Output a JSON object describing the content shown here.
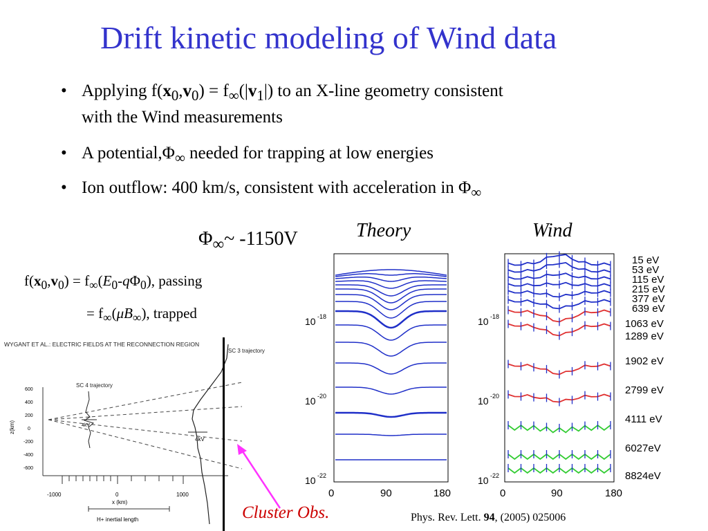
{
  "title": "Drift kinetic modeling of Wind data",
  "bullets": {
    "b1_pre": "Applying   f(",
    "b1_x": "x",
    "b1_sub0a": "0",
    "b1_comma": ",",
    "b1_v": "v",
    "b1_sub0b": "0",
    "b1_mid": ") = f",
    "b1_inf": "∞",
    "b1_open": "(|",
    "b1_v1": "v",
    "b1_sub1": "1",
    "b1_post": "|) to an X-line geometry consistent",
    "b1_line2": "with the Wind measurements",
    "b2_pre": "A potential,Φ",
    "b2_inf": "∞",
    "b2_post": " needed for trapping at low energies",
    "b3_pre": "Ion outflow: 400 km/s, consistent with acceleration in Φ",
    "b3_inf": "∞",
    "marker": "•"
  },
  "phi_label": {
    "phi": "Φ",
    "inf": "∞",
    "value": "~ -1150V"
  },
  "equations": {
    "passing_pre": "f(",
    "passing_x": "x",
    "passing_s0": "0",
    "passing_c": ",",
    "passing_v": "v",
    "passing_s0b": "0",
    "passing_mid": ") = f",
    "passing_inf": "∞",
    "passing_open": "(",
    "passing_E": "E",
    "passing_s0c": "0",
    "passing_minus": "-",
    "passing_q": "q",
    "passing_phi": "Φ",
    "passing_s0d": "0",
    "passing_post": "), passing",
    "trapped_pre": "= f",
    "trapped_inf": "∞",
    "trapped_open": "(",
    "trapped_mu": "μ",
    "trapped_B": "B",
    "trapped_binf": "∞",
    "trapped_post": "),  trapped"
  },
  "theory_label": "Theory",
  "wind_label": "Wind",
  "cluster_label": "Cluster Obs.",
  "citation": {
    "pre": "Phys. Rev. Lett. ",
    "vol": "94",
    "post": ", (2005)  025006"
  },
  "cluster_figure": {
    "header": "WYGANT ET AL.: ELECTRIC FIELDS AT THE RECONNECTION REGION",
    "sc3": "SC 3 trajectory",
    "sc4": "SC 4 trajectory",
    "ylabel": "z(km)",
    "xlabel": "x (km)",
    "yticks": [
      "600",
      "400",
      "200",
      "0",
      "-200",
      "-400",
      "-600"
    ],
    "xticks": [
      "-1000",
      "0",
      "1000"
    ],
    "kv_small": "4kV",
    "kv_large": "4kV",
    "inertial": "H+ inertial length"
  },
  "plot_axes": {
    "ytick_top": "10",
    "ytick_top_exp": "-18",
    "ytick_mid": "10",
    "ytick_mid_exp": "-20",
    "ytick_bot": "10",
    "ytick_bot_exp": "-22",
    "xticks": [
      "0",
      "90",
      "180"
    ]
  },
  "wind_energies": [
    "15 eV",
    "53 eV",
    "115 eV",
    "215 eV",
    "377 eV",
    "639 eV",
    "1063 eV",
    "1289 eV",
    "1902 eV",
    "2799 eV",
    "4111 eV",
    "6027eV",
    "8824eV"
  ],
  "colors": {
    "title": "#3333cc",
    "curve": "#1f2fc8",
    "red": "#e03030",
    "green": "#33cc33",
    "arrow": "#ff33ff",
    "cluster": "#cc0000"
  }
}
